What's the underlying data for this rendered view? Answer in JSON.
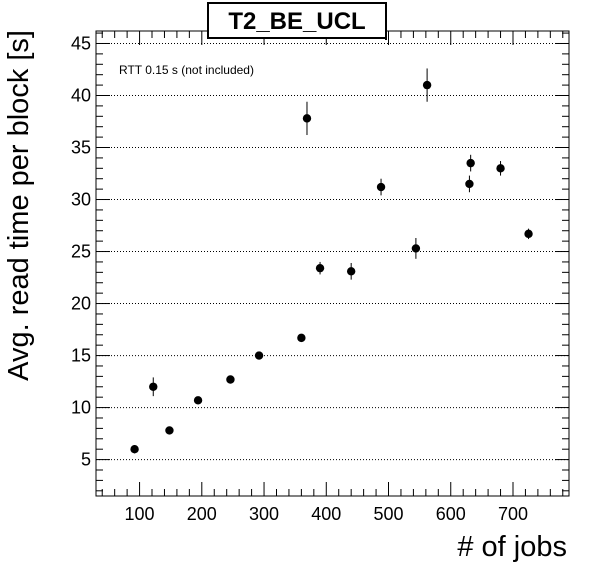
{
  "chart_data": {
    "type": "scatter",
    "title": "T2_BE_UCL",
    "xlabel": "# of jobs",
    "ylabel": "Avg. read time per block [s]",
    "annotation": "RTT 0.15 s (not included)",
    "xlim": [
      30,
      790
    ],
    "ylim": [
      1.5,
      46.2
    ],
    "x_ticks": [
      100,
      200,
      300,
      400,
      500,
      600,
      700
    ],
    "y_ticks": [
      5,
      10,
      15,
      20,
      25,
      30,
      35,
      40,
      45
    ],
    "grid": {
      "x": false,
      "y": true
    },
    "marker_color": "#000000",
    "points": [
      {
        "x": 92,
        "y": 6.0,
        "err": 0.4
      },
      {
        "x": 122,
        "y": 12.0,
        "err": 0.9
      },
      {
        "x": 148,
        "y": 7.8,
        "err": 0.3
      },
      {
        "x": 194,
        "y": 10.7,
        "err": 0.3
      },
      {
        "x": 246,
        "y": 12.7,
        "err": 0.3
      },
      {
        "x": 292,
        "y": 15.0,
        "err": 0.3
      },
      {
        "x": 360,
        "y": 16.7,
        "err": 0.3
      },
      {
        "x": 369,
        "y": 37.8,
        "err": 1.6
      },
      {
        "x": 390,
        "y": 23.4,
        "err": 0.6
      },
      {
        "x": 440,
        "y": 23.1,
        "err": 0.8
      },
      {
        "x": 488,
        "y": 31.2,
        "err": 0.8
      },
      {
        "x": 544,
        "y": 25.3,
        "err": 1.0
      },
      {
        "x": 562,
        "y": 41.0,
        "err": 1.6
      },
      {
        "x": 630,
        "y": 31.5,
        "err": 0.8
      },
      {
        "x": 632,
        "y": 33.5,
        "err": 0.8
      },
      {
        "x": 680,
        "y": 33.0,
        "err": 0.7
      },
      {
        "x": 725,
        "y": 26.7,
        "err": 0.5
      }
    ]
  }
}
